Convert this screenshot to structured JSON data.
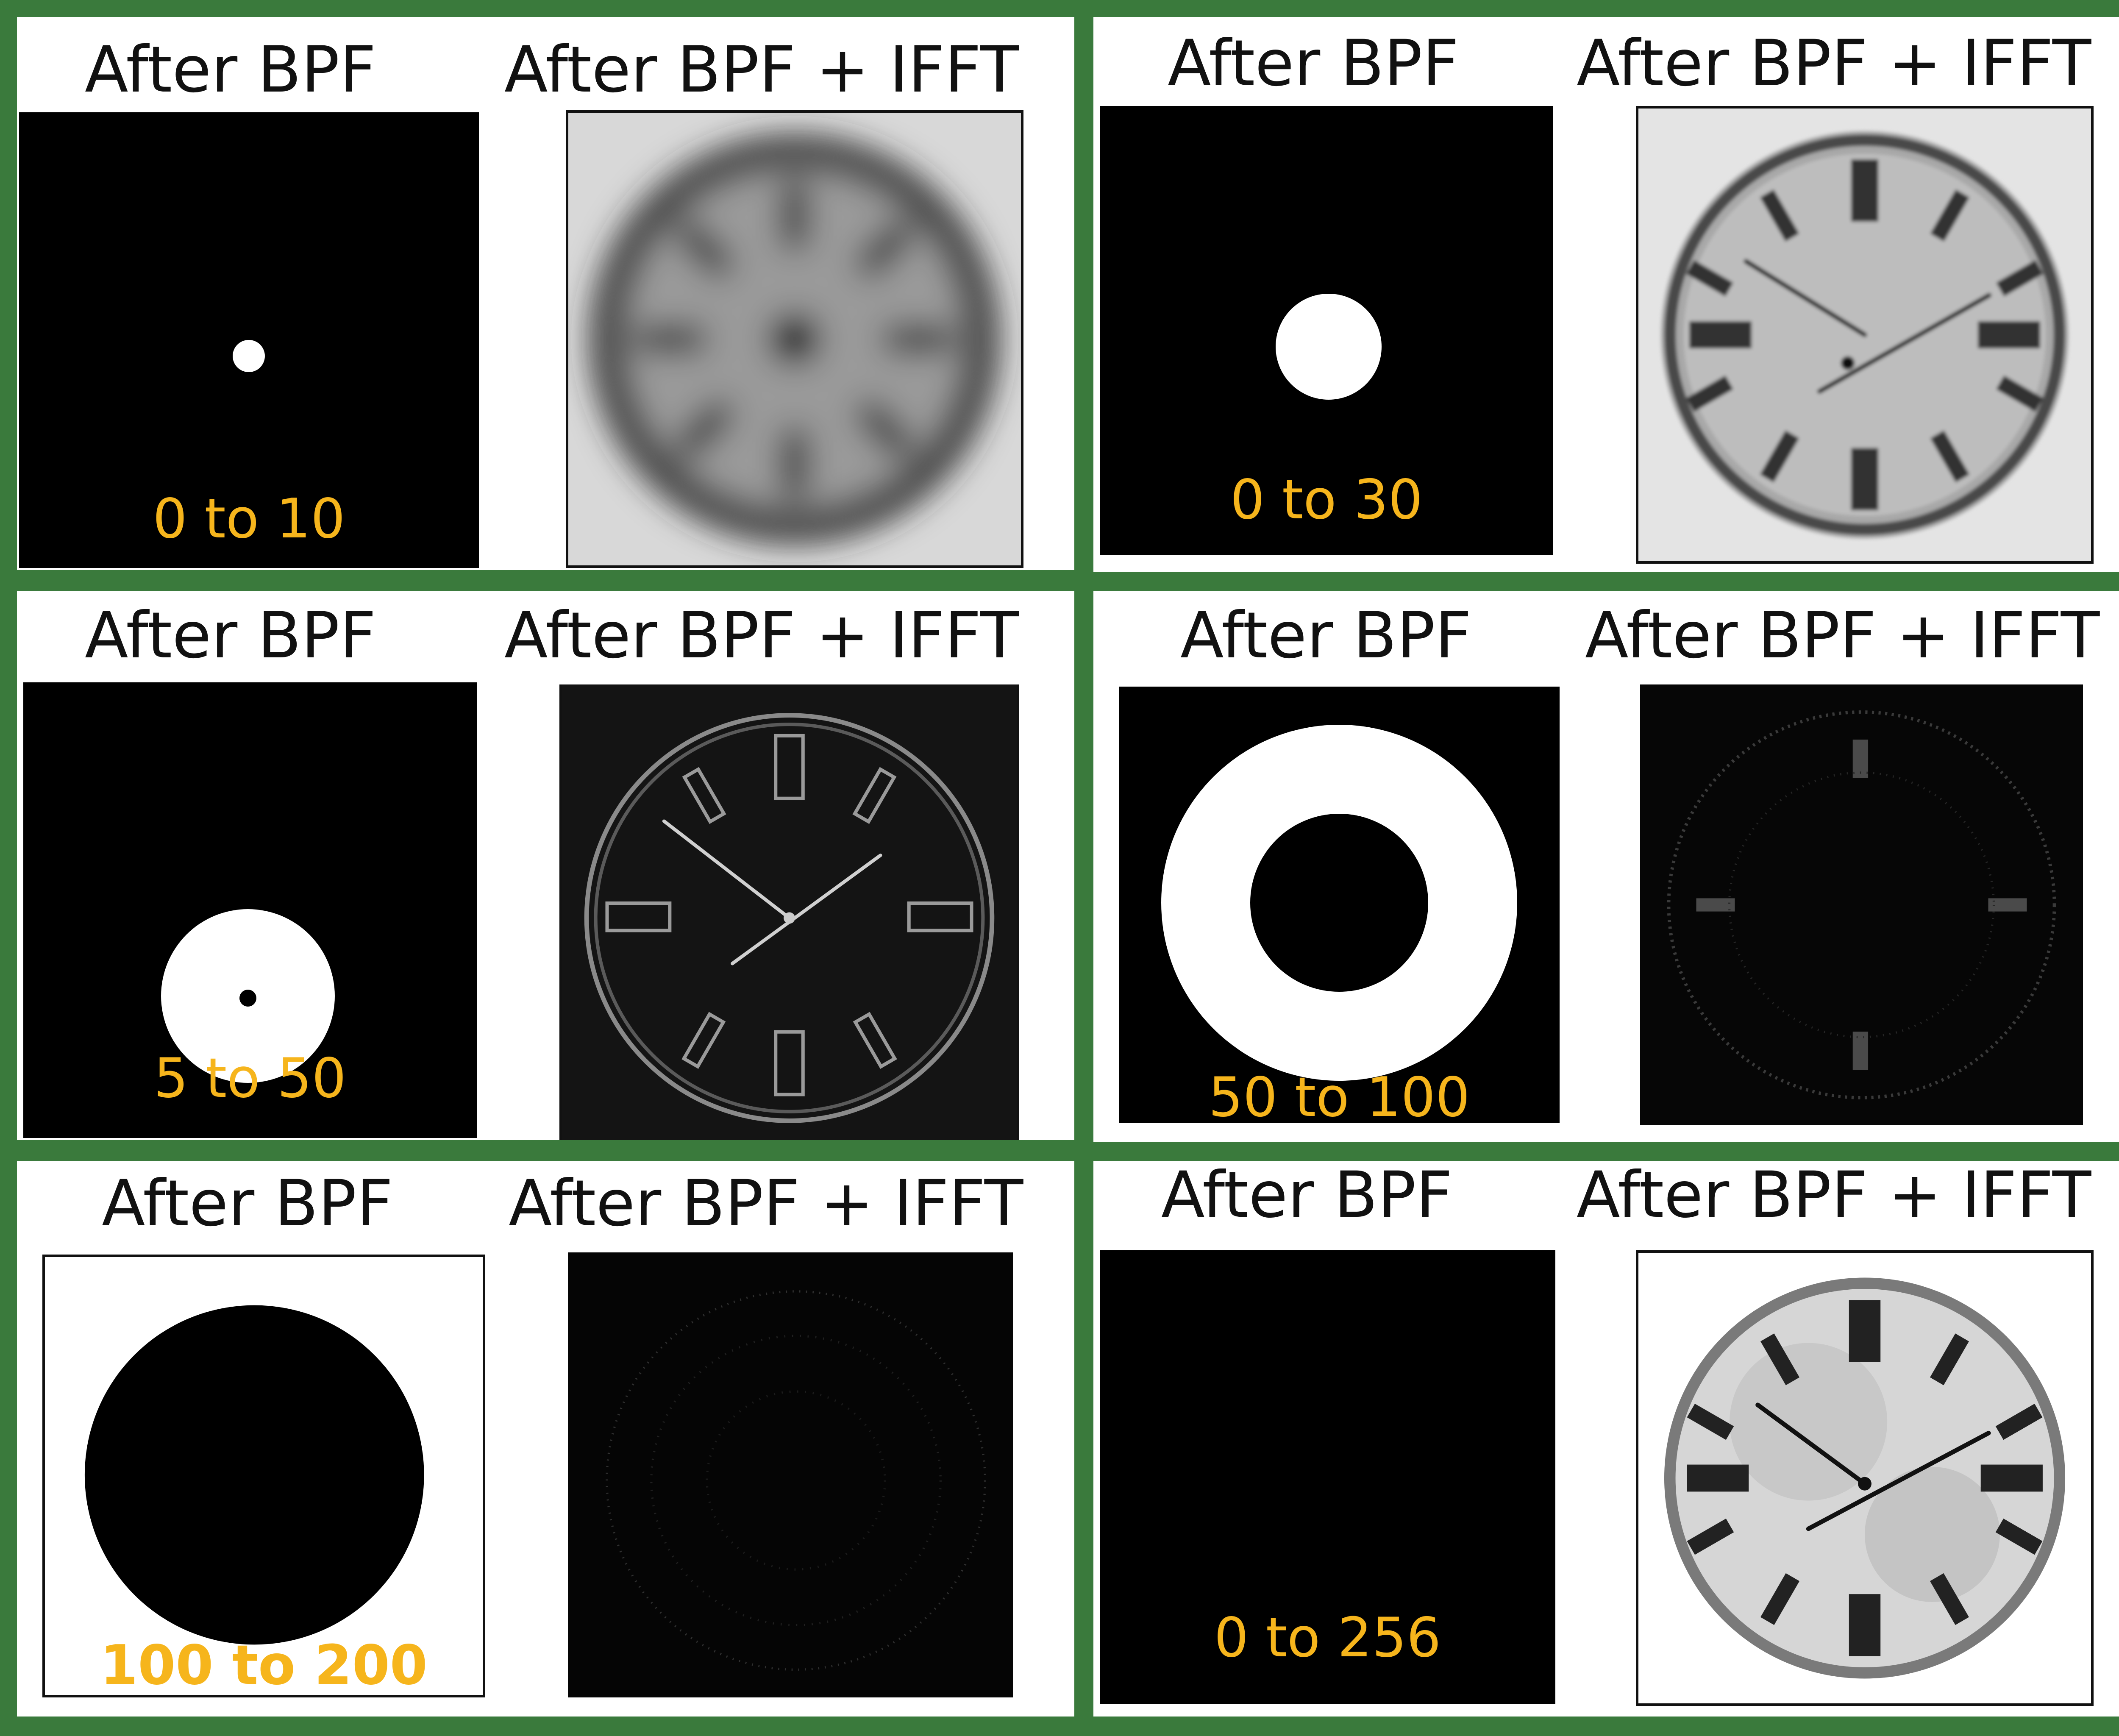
{
  "panels": [
    {
      "title_filter": "After BPF",
      "title_ifft": "After BPF + IFFT",
      "band": "0 to 10",
      "inner_radius": 0,
      "outer_radius": 10
    },
    {
      "title_filter": "After BPF",
      "title_ifft": "After BPF + IFFT",
      "band": "0 to 30",
      "inner_radius": 0,
      "outer_radius": 30
    },
    {
      "title_filter": "After BPF",
      "title_ifft": "After BPF + IFFT",
      "band": "5 to 50",
      "inner_radius": 5,
      "outer_radius": 50
    },
    {
      "title_filter": "After BPF",
      "title_ifft": "After BPF + IFFT",
      "band": "50 to 100",
      "inner_radius": 50,
      "outer_radius": 100
    },
    {
      "title_filter": "After BPF",
      "title_ifft": "After BPF + IFFT",
      "band": "100 to 200",
      "inner_radius": 100,
      "outer_radius": 200
    },
    {
      "title_filter": "After BPF",
      "title_ifft": "After BPF + IFFT",
      "band": "0 to 256",
      "inner_radius": 0,
      "outer_radius": 256
    }
  ],
  "colors": {
    "frame": "#3a7a3c",
    "label": "#f6b51c",
    "mask_on": "#ffffff",
    "mask_off": "#000000"
  },
  "icons": [
    "clock-face-icon"
  ]
}
